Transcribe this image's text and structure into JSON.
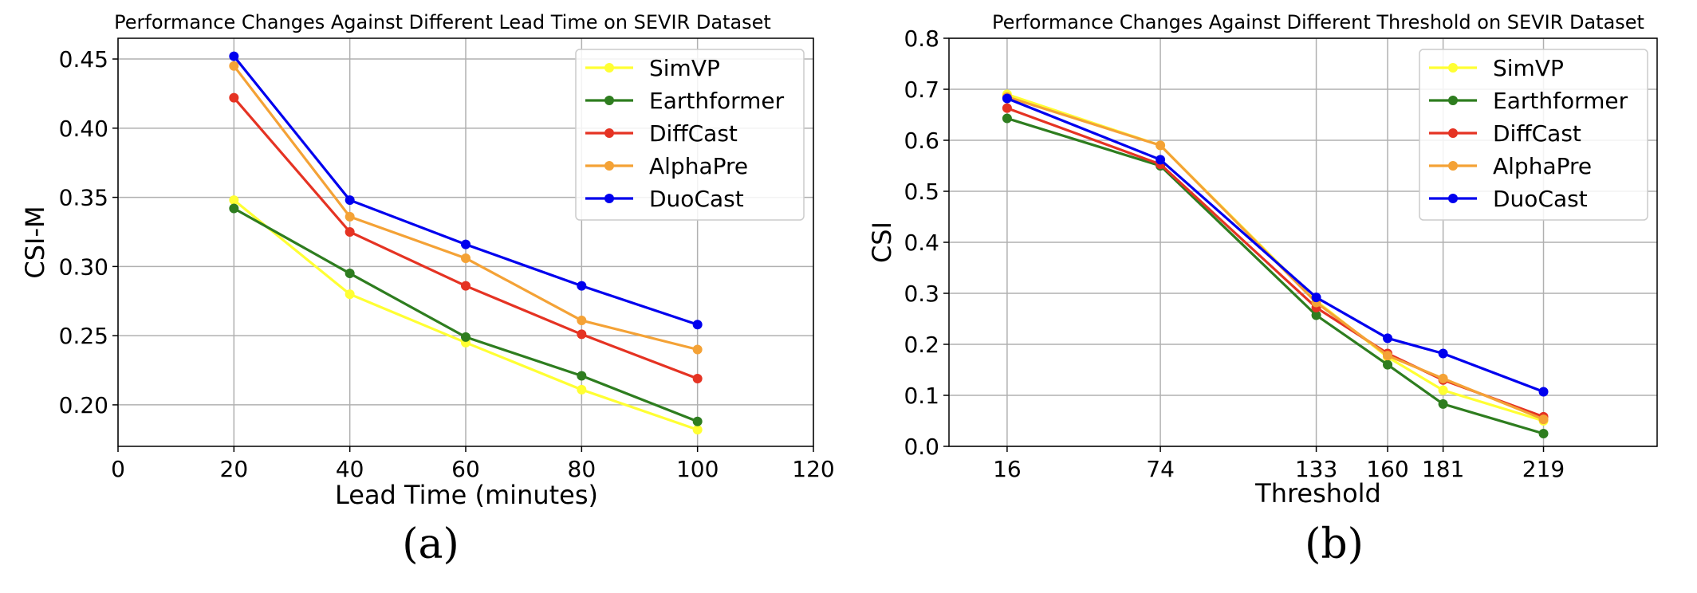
{
  "chart_data": [
    {
      "type": "line",
      "title": "Performance Changes Against Different Lead Time on SEVIR Dataset",
      "xlabel": "Lead Time (minutes)",
      "ylabel": "CSI-M",
      "caption": "(a)",
      "xlim": [
        0,
        120
      ],
      "ylim": [
        0.17,
        0.465
      ],
      "xticks": [
        0,
        20,
        40,
        60,
        80,
        100,
        120
      ],
      "yticks": [
        0.2,
        0.25,
        0.3,
        0.35,
        0.4,
        0.45
      ],
      "ytick_labels": [
        "0.20",
        "0.25",
        "0.30",
        "0.35",
        "0.40",
        "0.45"
      ],
      "grid": true,
      "legend_position": "top-right",
      "x": [
        20,
        40,
        60,
        80,
        100
      ],
      "series": [
        {
          "name": "SimVP",
          "color": "#ffff33",
          "values": [
            0.348,
            0.28,
            0.245,
            0.211,
            0.182
          ]
        },
        {
          "name": "Earthformer",
          "color": "#2e7d1f",
          "values": [
            0.342,
            0.295,
            0.249,
            0.221,
            0.188
          ]
        },
        {
          "name": "DiffCast",
          "color": "#e53323",
          "values": [
            0.422,
            0.325,
            0.286,
            0.251,
            0.219
          ]
        },
        {
          "name": "AlphaPre",
          "color": "#f4a236",
          "values": [
            0.445,
            0.336,
            0.306,
            0.261,
            0.24
          ]
        },
        {
          "name": "DuoCast",
          "color": "#0000ee",
          "values": [
            0.452,
            0.348,
            0.316,
            0.286,
            0.258
          ]
        }
      ]
    },
    {
      "type": "line",
      "title": "Performance Changes Against Different Threshold on SEVIR Dataset",
      "xlabel": "Threshold",
      "ylabel": "CSI",
      "caption": "(b)",
      "xlim": [
        -6,
        262
      ],
      "ylim": [
        0.0,
        0.8
      ],
      "xticks": [
        16,
        74,
        133,
        160,
        181,
        219
      ],
      "yticks": [
        0.0,
        0.1,
        0.2,
        0.3,
        0.4,
        0.5,
        0.6,
        0.7,
        0.8
      ],
      "ytick_labels": [
        "0.0",
        "0.1",
        "0.2",
        "0.3",
        "0.4",
        "0.5",
        "0.6",
        "0.7",
        "0.8"
      ],
      "grid": true,
      "legend_position": "top-right",
      "x": [
        16,
        74,
        133,
        160,
        181,
        219
      ],
      "series": [
        {
          "name": "SimVP",
          "color": "#ffff33",
          "values": [
            0.69,
            0.59,
            0.285,
            0.175,
            0.11,
            0.05
          ]
        },
        {
          "name": "Earthformer",
          "color": "#2e7d1f",
          "values": [
            0.643,
            0.55,
            0.257,
            0.16,
            0.083,
            0.025
          ]
        },
        {
          "name": "DiffCast",
          "color": "#e53323",
          "values": [
            0.663,
            0.553,
            0.272,
            0.182,
            0.13,
            0.058
          ]
        },
        {
          "name": "AlphaPre",
          "color": "#f4a236",
          "values": [
            0.685,
            0.59,
            0.282,
            0.178,
            0.133,
            0.053
          ]
        },
        {
          "name": "DuoCast",
          "color": "#0000ee",
          "values": [
            0.682,
            0.562,
            0.292,
            0.212,
            0.182,
            0.107
          ]
        }
      ]
    }
  ]
}
